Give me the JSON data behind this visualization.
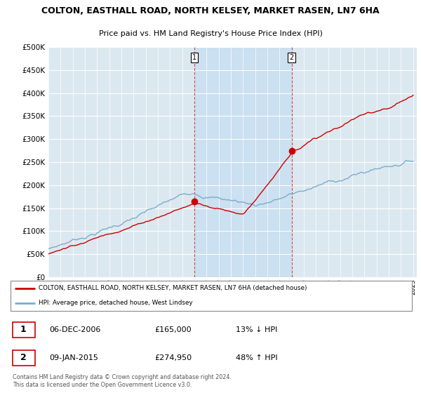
{
  "title1": "COLTON, EASTHALL ROAD, NORTH KELSEY, MARKET RASEN, LN7 6HA",
  "title2": "Price paid vs. HM Land Registry's House Price Index (HPI)",
  "legend_red": "COLTON, EASTHALL ROAD, NORTH KELSEY, MARKET RASEN, LN7 6HA (detached house)",
  "legend_blue": "HPI: Average price, detached house, West Lindsey",
  "annotation1_date": "06-DEC-2006",
  "annotation1_price": "£165,000",
  "annotation1_pct": "13% ↓ HPI",
  "annotation2_date": "09-JAN-2015",
  "annotation2_price": "£274,950",
  "annotation2_pct": "48% ↑ HPI",
  "footnote": "Contains HM Land Registry data © Crown copyright and database right 2024.\nThis data is licensed under the Open Government Licence v3.0.",
  "red_color": "#cc0000",
  "blue_color": "#7aadcb",
  "bg_plot": "#dce8f0",
  "shade_color": "#c8dff0",
  "ylim": [
    0,
    500000
  ],
  "yticks": [
    0,
    50000,
    100000,
    150000,
    200000,
    250000,
    300000,
    350000,
    400000,
    450000,
    500000
  ],
  "sale1_year": 2007.0,
  "sale1_price": 165000,
  "sale2_year": 2015.0,
  "sale2_price": 274950
}
